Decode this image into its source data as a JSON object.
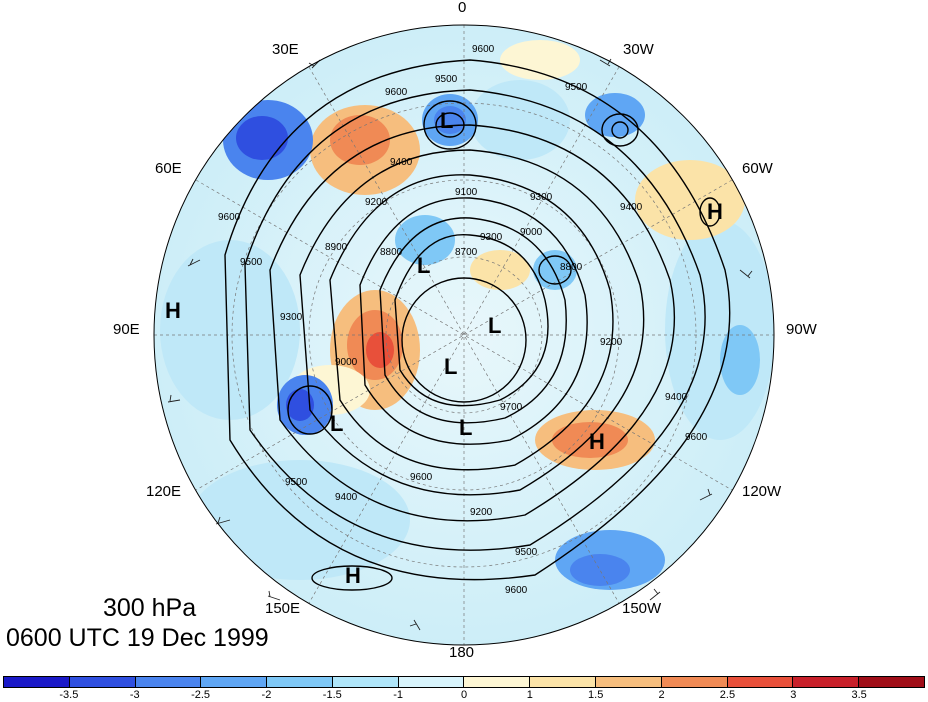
{
  "title": {
    "level": "300 hPa",
    "datetime": "0600 UTC 19 Dec 1999"
  },
  "longitude_labels": {
    "n0": "0",
    "n30w": "30W",
    "n60w": "60W",
    "n90w": "90W",
    "n120w": "120W",
    "n150w": "150W",
    "n180": "180",
    "n150e": "150E",
    "n120e": "120E",
    "n90e": "90E",
    "n60e": "60E",
    "n30e": "30E"
  },
  "pressure_systems": {
    "l1": "L",
    "l2": "L",
    "l3": "L",
    "l4": "L",
    "l5": "L",
    "l6": "L",
    "h1": "H",
    "h2": "H",
    "h3": "H",
    "h4": "H"
  },
  "contour_labels": [
    "9600",
    "9500",
    "9500",
    "9600",
    "9400",
    "9300",
    "9200",
    "9100",
    "9000",
    "8900",
    "8800",
    "8700",
    "9300",
    "9400",
    "9500",
    "9600",
    "9400",
    "9200",
    "9000",
    "9500",
    "9600",
    "9400",
    "9500",
    "9600",
    "9600",
    "9700",
    "8800",
    "9300",
    "9200"
  ],
  "colorbar": {
    "colors": [
      "#1a19c8",
      "#2f4fe0",
      "#4a84ee",
      "#5fa6f4",
      "#7fc8f6",
      "#b0e6fa",
      "#d8f4fc",
      "#fdf6d4",
      "#fbe3a8",
      "#f6be7e",
      "#f08a55",
      "#e8503a",
      "#c8202a",
      "#a00e18"
    ],
    "labels": [
      "-3.5",
      "-3",
      "-2.5",
      "-2",
      "-1.5",
      "-1",
      "0",
      "1",
      "1.5",
      "2",
      "2.5",
      "3",
      "3.5"
    ]
  }
}
